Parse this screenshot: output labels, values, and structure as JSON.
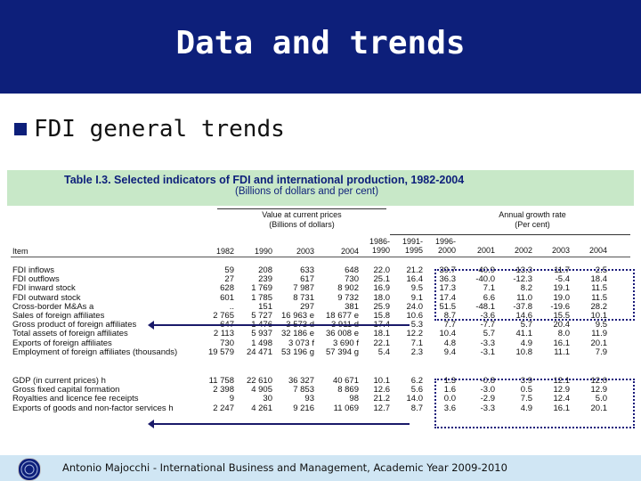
{
  "slide": {
    "title": "Data and trends",
    "bullet": "FDI general trends",
    "footer": "Antonio Majocchi - International Business and Management, Academic Year 2009-2010",
    "colors": {
      "header_bg": "#0d1f7a",
      "table_head_bg": "#c8e8c8",
      "footer_bg": "#d0e6f4"
    }
  },
  "table": {
    "title": "Table I.3.   Selected indicators of FDI and international production, 1982-2004",
    "subtitle": "(Billions of dollars and per cent)",
    "group_left": {
      "line1": "Value at current prices",
      "line2": "(Billions of dollars)"
    },
    "group_right": {
      "line1": "Annual growth rate",
      "line2": "(Per cent)"
    },
    "item_header": "Item",
    "value_years": [
      "1982",
      "1990",
      "2003",
      "2004"
    ],
    "growth_periods": [
      {
        "l1": "1986-",
        "l2": "1990"
      },
      {
        "l1": "1991-",
        "l2": "1995"
      },
      {
        "l1": "1996-",
        "l2": "2000"
      },
      {
        "l1": "",
        "l2": "2001"
      },
      {
        "l1": "",
        "l2": "2002"
      },
      {
        "l1": "",
        "l2": "2003"
      },
      {
        "l1": "",
        "l2": "2004"
      }
    ],
    "rows_a": [
      {
        "item": "FDI inflows",
        "v": [
          "59",
          "208",
          "633",
          "648"
        ],
        "g": [
          "22.0",
          "21.2",
          "39.7",
          "-40.9",
          "-13.3",
          "-11.7",
          "2.5"
        ]
      },
      {
        "item": "FDI outflows",
        "v": [
          "27",
          "239",
          "617",
          "730"
        ],
        "g": [
          "25.1",
          "16.4",
          "36.3",
          "-40.0",
          "-12.3",
          "-5.4",
          "18.4"
        ]
      },
      {
        "item": "FDI inward stock",
        "v": [
          "628",
          "1 769",
          "7 987",
          "8 902"
        ],
        "g": [
          "16.9",
          "9.5",
          "17.3",
          "7.1",
          "8.2",
          "19.1",
          "11.5"
        ]
      },
      {
        "item": "FDI outward stock",
        "v": [
          "601",
          "1 785",
          "8 731",
          "9 732"
        ],
        "g": [
          "18.0",
          "9.1",
          "17.4",
          "6.6",
          "11.0",
          "19.0",
          "11.5"
        ]
      },
      {
        "item": "Cross-border M&As a",
        "v": [
          "..",
          "151",
          "297",
          "381"
        ],
        "g": [
          "25.9",
          "24.0",
          "51.5",
          "-48.1",
          "-37.8",
          "-19.6",
          "28.2"
        ]
      },
      {
        "item": "Sales of foreign affiliates",
        "v": [
          "2 765",
          "5 727",
          "16 963 e",
          "18 677 e"
        ],
        "g": [
          "15.8",
          "10.6",
          "8.7",
          "-3.6",
          "14.6",
          "15.5",
          "10.1"
        ]
      },
      {
        "item": "Gross product of foreign affiliates",
        "v": [
          "647",
          "1 476",
          "3 573 d",
          "3 911 d"
        ],
        "g": [
          "17.4",
          "5.3",
          "7.7",
          "-7.7",
          "5.7",
          "20.4",
          "9.5"
        ]
      },
      {
        "item": "Total assets of foreign affiliates",
        "v": [
          "2 113",
          "5 937",
          "32 186 e",
          "36 008 e"
        ],
        "g": [
          "18.1",
          "12.2",
          "10.4",
          "5.7",
          "41.1",
          "8.0",
          "11.9"
        ]
      },
      {
        "item": "Exports of foreign affiliates",
        "v": [
          "730",
          "1 498",
          "3 073 f",
          "3 690 f"
        ],
        "g": [
          "22.1",
          "7.1",
          "4.8",
          "-3.3",
          "4.9",
          "16.1",
          "20.1"
        ]
      },
      {
        "item": "Employment of foreign affiliates (thousands)",
        "v": [
          "19 579",
          "24 471",
          "53 196 g",
          "57 394 g"
        ],
        "g": [
          "5.4",
          "2.3",
          "9.4",
          "-3.1",
          "10.8",
          "11.1",
          "7.9"
        ]
      }
    ],
    "rows_b": [
      {
        "item": "GDP (in current prices) h",
        "v": [
          "11 758",
          "22 610",
          "36 327",
          "40 671"
        ],
        "g": [
          "10.1",
          "6.2",
          "1.3",
          "-0.8",
          "3.9",
          "12.1",
          "12.0"
        ]
      },
      {
        "item": "Gross fixed capital formation",
        "v": [
          "2 398",
          "4 905",
          "7 853",
          "8 869"
        ],
        "g": [
          "12.6",
          "5.6",
          "1.6",
          "-3.0",
          "0.5",
          "12.9",
          "12.9"
        ]
      },
      {
        "item": "Royalties and licence fee receipts",
        "v": [
          "9",
          "30",
          "93",
          "98"
        ],
        "g": [
          "21.2",
          "14.0",
          "0.0",
          "-2.9",
          "7.5",
          "12.4",
          "5.0"
        ]
      },
      {
        "item": "Exports of goods and non-factor services h",
        "v": [
          "2 247",
          "4 261",
          "9 216",
          "11 069"
        ],
        "g": [
          "12.7",
          "8.7",
          "3.6",
          "-3.3",
          "4.9",
          "16.1",
          "20.1"
        ]
      }
    ]
  }
}
